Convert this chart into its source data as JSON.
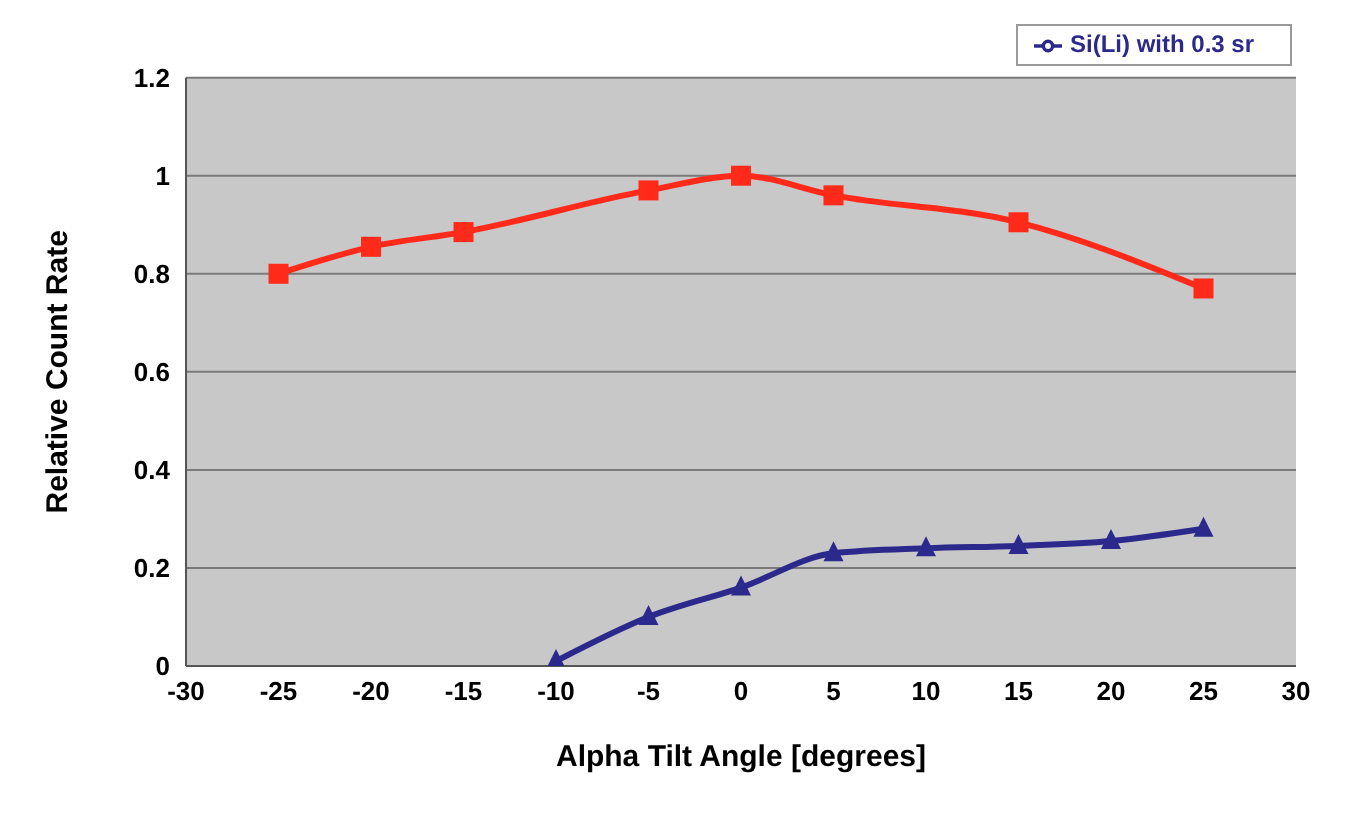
{
  "chart_data": {
    "type": "line",
    "xlabel": "Alpha Tilt Angle [degrees]",
    "ylabel": "Relative Count Rate",
    "xlim": [
      -30,
      30
    ],
    "xticks": [
      -30,
      -25,
      -20,
      -15,
      -10,
      -5,
      0,
      5,
      10,
      15,
      20,
      25,
      30
    ],
    "ylim": [
      0,
      1.2
    ],
    "yticks": [
      0,
      0.2,
      0.4,
      0.6,
      0.8,
      1,
      1.2
    ],
    "grid": "y",
    "legend": "top right",
    "series": [
      {
        "name": "Si(Li) with 0.3 sr",
        "color": "#2b2a8c",
        "marker": "triangle",
        "x": [
          -10,
          -5,
          0,
          5,
          10,
          15,
          20,
          25
        ],
        "values": [
          0.01,
          0.1,
          0.16,
          0.23,
          0.24,
          0.245,
          0.255,
          0.28
        ]
      },
      {
        "color": "#ff2a1a",
        "marker": "square",
        "x": [
          -25,
          -20,
          -15,
          -5,
          0,
          5,
          15,
          25
        ],
        "values": [
          0.8,
          0.855,
          0.885,
          0.97,
          1.0,
          0.96,
          0.905,
          0.77
        ]
      }
    ]
  }
}
